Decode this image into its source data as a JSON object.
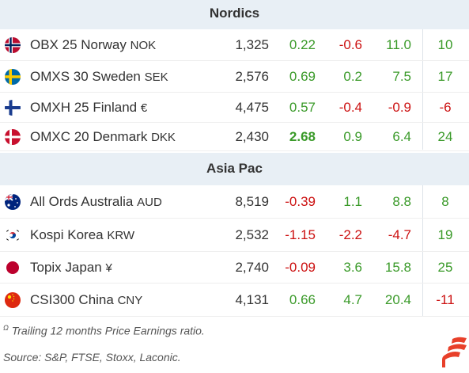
{
  "sections": [
    {
      "title": "Nordics",
      "rows": [
        {
          "name": "OBX 25 Norway",
          "currency": "NOK",
          "flag": "norway-flag-icon",
          "price": "1,325",
          "d1": "0.22",
          "d1c": "pos",
          "d2": "-0.6",
          "d2c": "neg",
          "d3": "11.0",
          "d3c": "pos",
          "pe": "10",
          "pec": "pos",
          "bold": false
        },
        {
          "name": "OMXS 30 Sweden",
          "currency": "SEK",
          "flag": "sweden-flag-icon",
          "price": "2,576",
          "d1": "0.69",
          "d1c": "pos",
          "d2": "0.2",
          "d2c": "pos",
          "d3": "7.5",
          "d3c": "pos",
          "pe": "17",
          "pec": "pos",
          "bold": false
        },
        {
          "name": "OMXH 25 Finland",
          "currency": "€",
          "flag": "finland-flag-icon",
          "price": "4,475",
          "d1": "0.57",
          "d1c": "pos",
          "d2": "-0.4",
          "d2c": "neg",
          "d3": "-0.9",
          "d3c": "neg",
          "pe": "-6",
          "pec": "neg",
          "bold": false
        },
        {
          "name": "OMXC 20 Denmark",
          "currency": "DKK",
          "flag": "denmark-flag-icon",
          "price": "2,430",
          "d1": "2.68",
          "d1c": "pos",
          "d2": "0.9",
          "d2c": "pos",
          "d3": "6.4",
          "d3c": "pos",
          "pe": "24",
          "pec": "pos",
          "bold": true
        }
      ]
    },
    {
      "title": "Asia Pac",
      "rows": [
        {
          "name": "All Ords Australia",
          "currency": "AUD",
          "flag": "australia-flag-icon",
          "price": "8,519",
          "d1": "-0.39",
          "d1c": "neg",
          "d2": "1.1",
          "d2c": "pos",
          "d3": "8.8",
          "d3c": "pos",
          "pe": "8",
          "pec": "pos",
          "bold": false
        },
        {
          "name": "Kospi Korea",
          "currency": "KRW",
          "flag": "korea-flag-icon",
          "price": "2,532",
          "d1": "-1.15",
          "d1c": "neg",
          "d2": "-2.2",
          "d2c": "neg",
          "d3": "-4.7",
          "d3c": "neg",
          "pe": "19",
          "pec": "pos",
          "bold": false
        },
        {
          "name": "Topix Japan",
          "currency": "¥",
          "flag": "japan-flag-icon",
          "price": "2,740",
          "d1": "-0.09",
          "d1c": "neg",
          "d2": "3.6",
          "d2c": "pos",
          "d3": "15.8",
          "d3c": "pos",
          "pe": "25",
          "pec": "pos",
          "bold": false
        },
        {
          "name": "CSI300 China",
          "currency": "CNY",
          "flag": "china-flag-icon",
          "price": "4,131",
          "d1": "0.66",
          "d1c": "pos",
          "d2": "4.7",
          "d2c": "pos",
          "d3": "20.4",
          "d3c": "pos",
          "pe": "-11",
          "pec": "neg",
          "bold": false
        }
      ]
    }
  ],
  "footnotes": {
    "marker": "Ω",
    "pe_note": "Trailing 12 months Price Earnings ratio.",
    "source": "Source: S&P, FTSE, Stoxx, Laconic."
  },
  "colors": {
    "positive": "#3a9a29",
    "negative": "#cc1111",
    "header_bg": "#e8eff5",
    "logo": "#e8402a"
  },
  "logo": "laconic-logo-icon"
}
